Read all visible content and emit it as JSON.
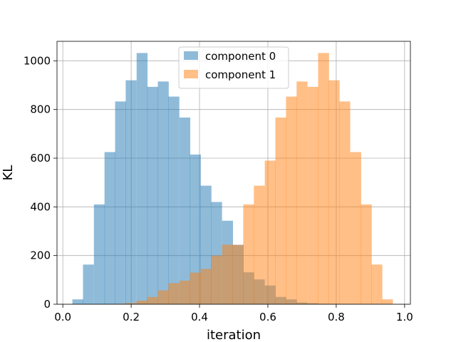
{
  "chart_data": {
    "type": "bar",
    "title": "",
    "xlabel": "iteration",
    "ylabel": "KL",
    "xlim": [
      -0.017,
      1.017
    ],
    "ylim": [
      0,
      1080
    ],
    "xticks": [
      0.0,
      0.2,
      0.4,
      0.6,
      0.8,
      1.0
    ],
    "xtick_labels": [
      "0.0",
      "0.2",
      "0.4",
      "0.6",
      "0.8",
      "1.0"
    ],
    "yticks": [
      0,
      200,
      400,
      600,
      800,
      1000
    ],
    "ytick_labels": [
      "0",
      "200",
      "400",
      "600",
      "800",
      "1000"
    ],
    "grid": true,
    "legend_position": "upper-center",
    "bin_width": 0.0313,
    "series": [
      {
        "name": "component 0",
        "color": "#1f77b4",
        "alpha": 0.5,
        "bin_starts": [
          0.028,
          0.059,
          0.091,
          0.122,
          0.153,
          0.184,
          0.216,
          0.247,
          0.278,
          0.309,
          0.341,
          0.372,
          0.403,
          0.434,
          0.466,
          0.497,
          0.528,
          0.559,
          0.591,
          0.622,
          0.653,
          0.684,
          0.716,
          0.747,
          0.778,
          0.809
        ],
        "values": [
          20,
          163,
          410,
          625,
          833,
          920,
          1032,
          893,
          915,
          853,
          767,
          615,
          487,
          420,
          343,
          244,
          131,
          102,
          77,
          30,
          20,
          7,
          4,
          2,
          1,
          1
        ]
      },
      {
        "name": "component 1",
        "color": "#ff7f0e",
        "alpha": 0.5,
        "bin_starts": [
          0.153,
          0.184,
          0.216,
          0.247,
          0.278,
          0.309,
          0.341,
          0.372,
          0.403,
          0.434,
          0.466,
          0.497,
          0.528,
          0.559,
          0.591,
          0.622,
          0.653,
          0.684,
          0.716,
          0.747,
          0.778,
          0.809,
          0.841,
          0.872,
          0.903,
          0.934
        ],
        "values": [
          2,
          5,
          15,
          30,
          57,
          87,
          97,
          130,
          145,
          200,
          245,
          244,
          410,
          487,
          590,
          767,
          853,
          915,
          893,
          1032,
          920,
          833,
          625,
          410,
          163,
          20
        ]
      }
    ]
  }
}
